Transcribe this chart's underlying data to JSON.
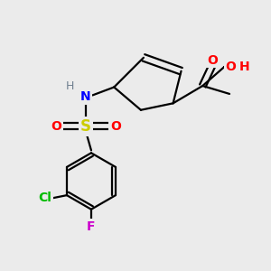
{
  "background_color": "#ebebeb",
  "bond_color": "#000000",
  "atom_colors": {
    "C": "#000000",
    "H": "#708090",
    "N": "#0000ff",
    "O": "#ff0000",
    "S": "#cccc00",
    "Cl": "#00bb00",
    "F": "#cc00cc"
  },
  "bond_lw": 1.6,
  "font_size": 9.5
}
